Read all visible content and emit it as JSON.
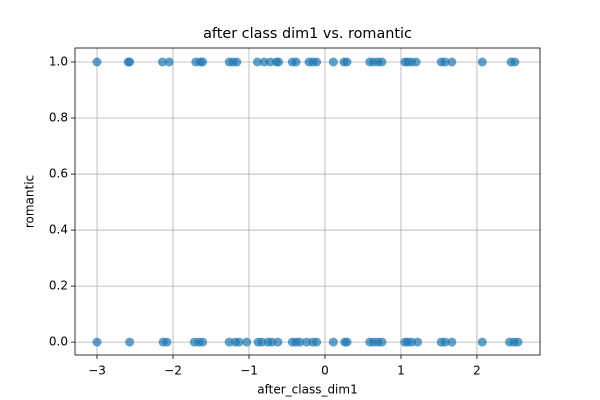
{
  "chart_data": {
    "type": "scatter",
    "title": "after class dim1 vs. romantic",
    "x_label": "after_class_dim1",
    "y_label": "romantic",
    "color": "#1f77b4",
    "grid": true,
    "xlim": [
      -3.29,
      2.83
    ],
    "ylim": [
      -0.046,
      1.05
    ],
    "xticks": [
      {
        "value": -3,
        "label": "−3"
      },
      {
        "value": -2,
        "label": "−2"
      },
      {
        "value": -1,
        "label": "−1"
      },
      0,
      1,
      2
    ],
    "yticks": [
      {
        "value": 0,
        "label": "0.0"
      },
      {
        "value": 0.2,
        "label": "0.2"
      },
      {
        "value": 0.4,
        "label": "0.4"
      },
      {
        "value": 0.6,
        "label": "0.6"
      },
      {
        "value": 0.8,
        "label": "0.8"
      },
      {
        "value": 1,
        "label": "1.0"
      }
    ],
    "x": [
      -3.0,
      -2.59,
      -2.57,
      -2.14,
      -2.05,
      -1.7,
      -1.64,
      -1.61,
      -1.26,
      -1.21,
      -1.16,
      -0.89,
      -0.8,
      -0.72,
      -0.64,
      -0.61,
      -0.43,
      -0.38,
      -0.21,
      -0.16,
      -0.11,
      0.11,
      0.25,
      0.29,
      0.59,
      0.64,
      0.7,
      0.75,
      1.05,
      1.09,
      1.14,
      1.2,
      1.53,
      1.58,
      1.67,
      2.07,
      2.45,
      2.5,
      -3.0,
      -2.57,
      -2.13,
      -2.08,
      -1.72,
      -1.66,
      -1.61,
      -1.26,
      -1.18,
      -1.13,
      -1.03,
      -0.88,
      -0.83,
      -0.75,
      -0.7,
      -0.62,
      -0.43,
      -0.38,
      -0.33,
      -0.24,
      -0.16,
      -0.11,
      0.11,
      0.26,
      0.29,
      0.59,
      0.64,
      0.7,
      0.75,
      1.05,
      1.09,
      1.14,
      1.22,
      1.53,
      1.58,
      1.67,
      2.07,
      2.43,
      2.49,
      2.54
    ],
    "values": [
      1,
      1,
      1,
      1,
      1,
      1,
      1,
      1,
      1,
      1,
      1,
      1,
      1,
      1,
      1,
      1,
      1,
      1,
      1,
      1,
      1,
      1,
      1,
      1,
      1,
      1,
      1,
      1,
      1,
      1,
      1,
      1,
      1,
      1,
      1,
      1,
      1,
      1,
      0,
      0,
      0,
      0,
      0,
      0,
      0,
      0,
      0,
      0,
      0,
      0,
      0,
      0,
      0,
      0,
      0,
      0,
      0,
      0,
      0,
      0,
      0,
      0,
      0,
      0,
      0,
      0,
      0,
      0,
      0,
      0,
      0,
      0,
      0,
      0,
      0,
      0,
      0,
      0
    ]
  }
}
